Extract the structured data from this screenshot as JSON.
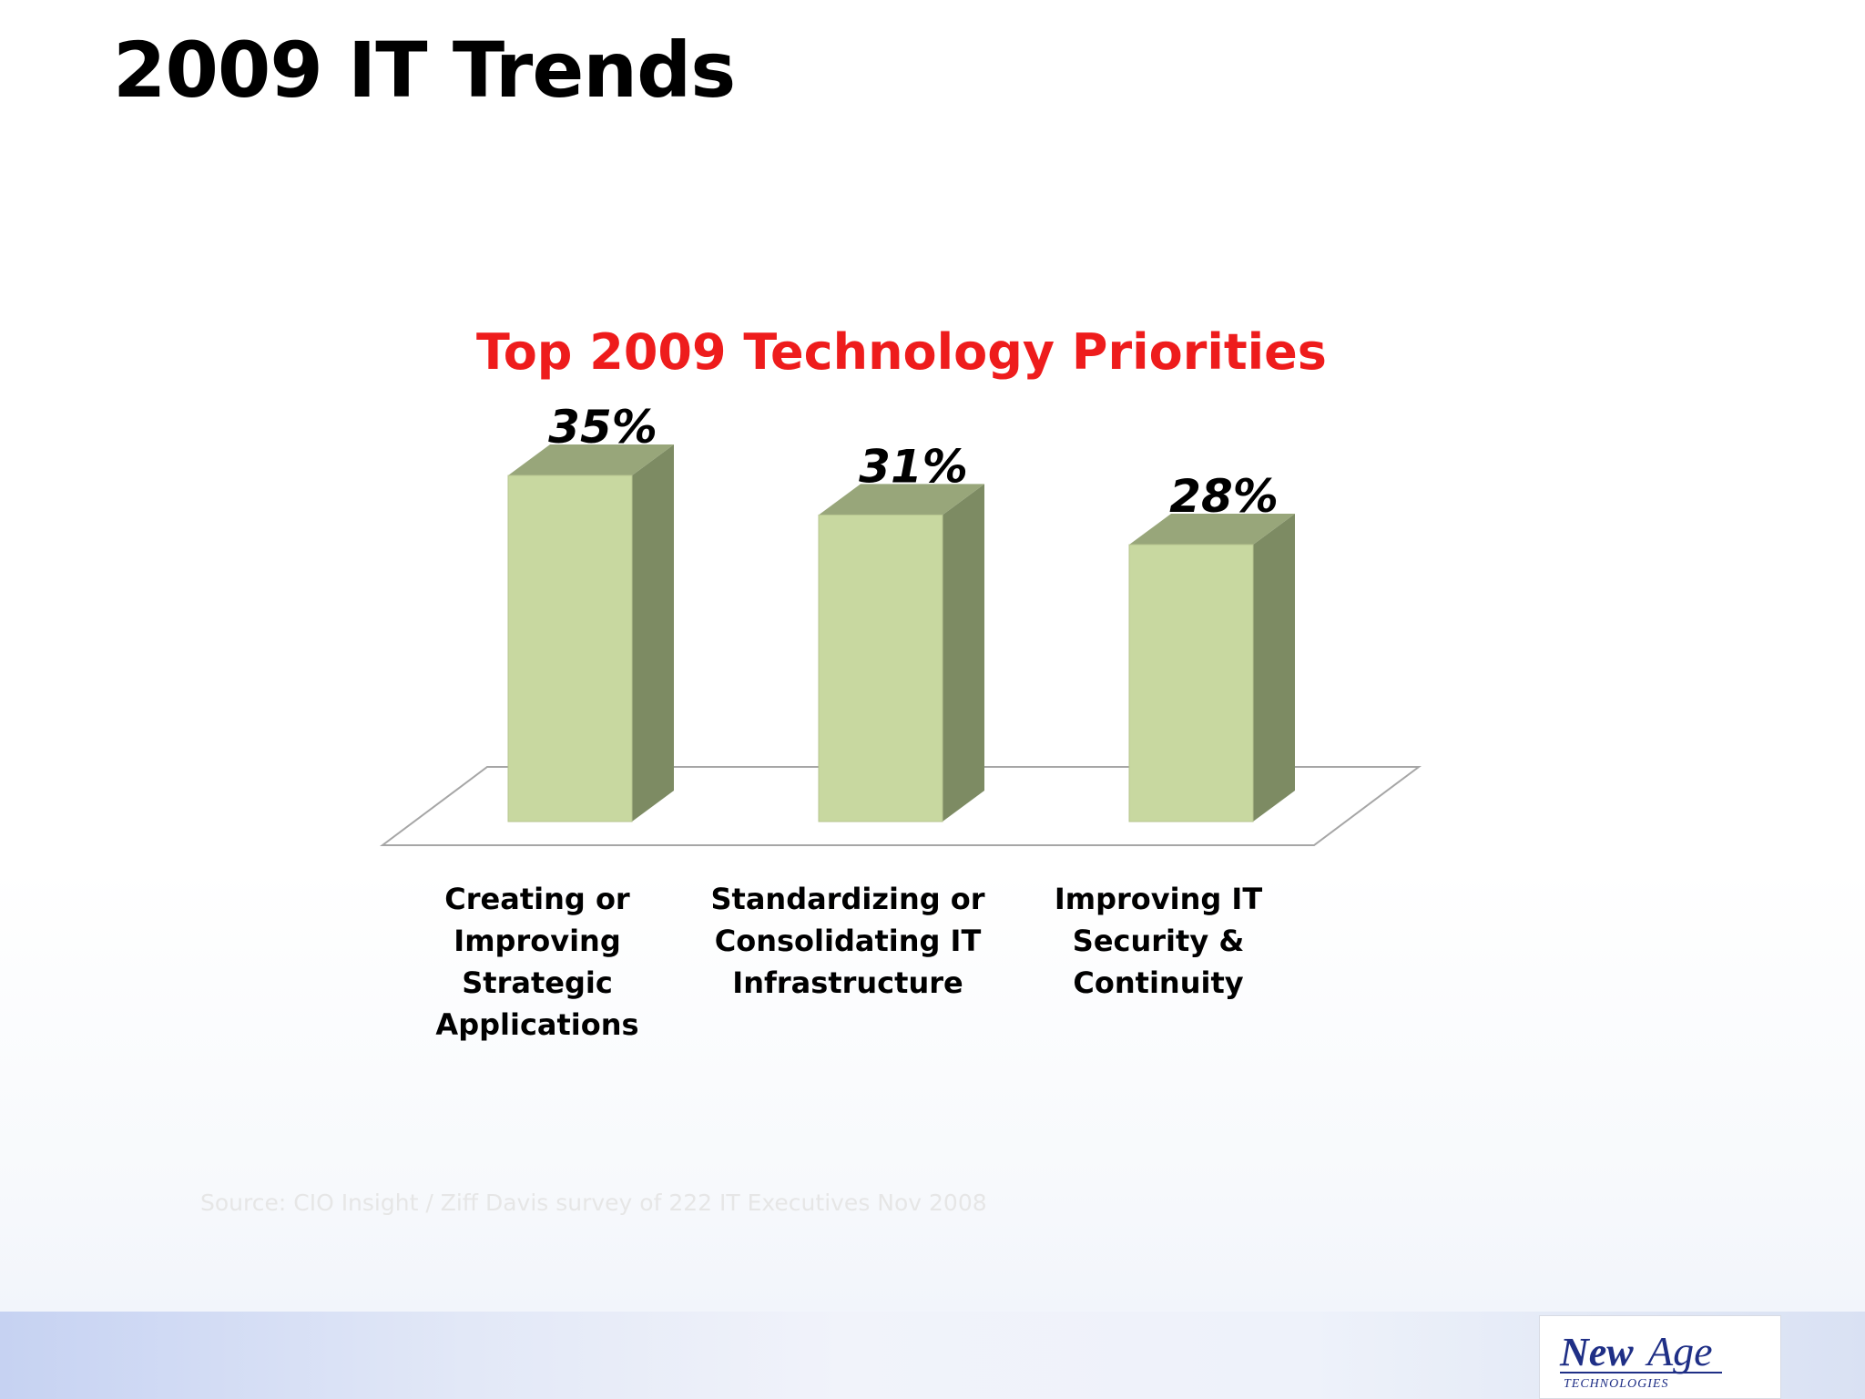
{
  "slide": {
    "title": "2009 IT Trends",
    "source": "Source:  CIO Insight / Ziff Davis survey of 222 IT Executives Nov 2008"
  },
  "logo": {
    "brand_a": "New",
    "brand_b": "Age",
    "tagline": "TECHNOLOGIES"
  },
  "colors": {
    "title_red": "#ee1c1c",
    "bar_front": "#c8d8a0",
    "bar_side": "#7d8b63",
    "bar_top": "#98a67a",
    "floor_line": "#a6a6a6",
    "logo_blue": "#1f2f86"
  },
  "chart_data": {
    "type": "bar",
    "title": "Top 2009 Technology Priorities",
    "categories": [
      "Creating or Improving Strategic Applications",
      "Standardizing or Consolidating IT Infrastructure",
      "Improving IT Security & Continuity"
    ],
    "category_lines": [
      [
        "Creating or",
        "Improving Strategic",
        "Applications"
      ],
      [
        "Standardizing or",
        "Consolidating IT",
        "Infrastructure"
      ],
      [
        "Improving IT",
        "Security &",
        "Continuity"
      ]
    ],
    "values": [
      35,
      31,
      28
    ],
    "data_labels": [
      "35%",
      "31%",
      "28%"
    ],
    "unit": "%",
    "style": "3d",
    "ylim": [
      0,
      35
    ],
    "grid": false,
    "legend": "none"
  }
}
